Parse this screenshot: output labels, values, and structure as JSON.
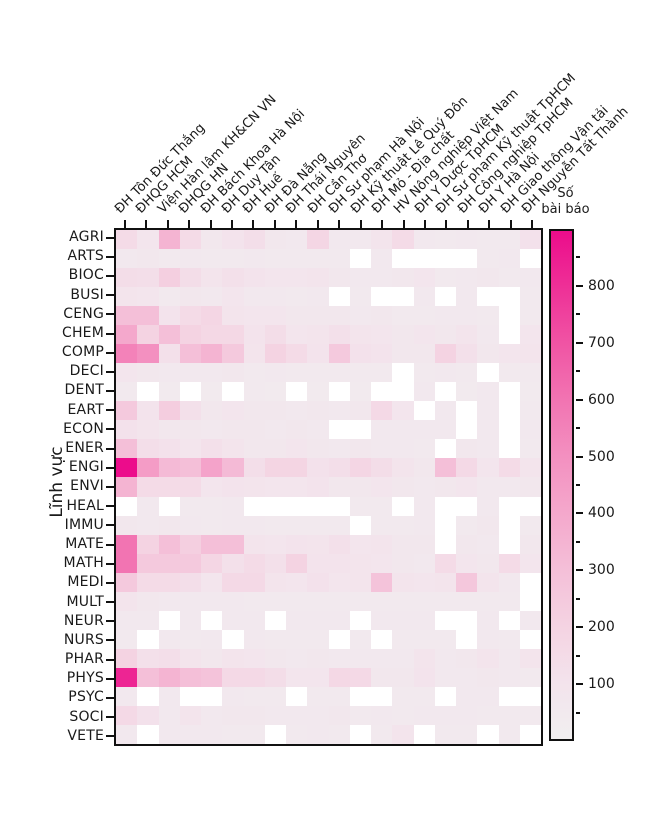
{
  "page": {
    "background": "#ffffff"
  },
  "y_axis": {
    "title": "Lĩnh vực"
  },
  "colorbar": {
    "title_line1": "Số",
    "title_line2": "bài báo",
    "major_ticks": [
      100,
      200,
      300,
      400,
      500,
      600,
      700,
      800
    ],
    "minor_ticks": [
      50,
      150,
      250,
      350,
      450,
      550,
      650,
      750,
      850
    ],
    "min": 0,
    "max": 900,
    "gradient_stops": [
      "#f1eff0",
      "#f3e3ec",
      "#f4d3e2",
      "#f4bfd8",
      "#f4a8cc",
      "#f390c0",
      "#f274b2",
      "#f054a4",
      "#ee3097",
      "#ec0c8b"
    ]
  },
  "chart_data": {
    "type": "heatmap",
    "title": "",
    "xlabel": "",
    "ylabel": "Lĩnh vực",
    "legend_title": "Số bài báo",
    "legend_position": "right",
    "grid": false,
    "x_categories": [
      "ĐH Tôn Đức Thắng",
      "ĐHQG HCM",
      "Viện Hàn lâm KH&CN VN",
      "ĐHQG HN",
      "ĐH Bách Khoa Hà Nội",
      "ĐH Duy Tân",
      "ĐH Huế",
      "ĐH Đà Nẵng",
      "ĐH Thái Nguyên",
      "ĐH Cần Thơ",
      "ĐH Sư phạm Hà Nội",
      "ĐH Kỹ thuật Lê Quý Đôn",
      "ĐH Mỏ - Địa chất",
      "HV Nông nghiệp Việt Nam",
      "ĐH Y Dược TpHCM",
      "ĐH Sư phạm Kỹ thuật TpHCM",
      "ĐH Công nghiệp TpHCM",
      "ĐH Y Hà Nội",
      "ĐH Giao thông Vận tải",
      "ĐH Nguyễn Tất Thành"
    ],
    "y_categories": [
      "AGRI",
      "ARTS",
      "BIOC",
      "BUSI",
      "CENG",
      "CHEM",
      "COMP",
      "DECI",
      "DENT",
      "EART",
      "ECON",
      "ENER",
      "ENGI",
      "ENVI",
      "HEAL",
      "IMMU",
      "MATE",
      "MATH",
      "MEDI",
      "MULT",
      "NEUR",
      "NURS",
      "PHAR",
      "PHYS",
      "PSYC",
      "SOCI",
      "VETE"
    ],
    "values": [
      [
        150,
        80,
        350,
        150,
        70,
        100,
        130,
        70,
        60,
        180,
        60,
        60,
        90,
        150,
        60,
        50,
        60,
        50,
        50,
        110
      ],
      [
        60,
        70,
        50,
        60,
        50,
        50,
        60,
        50,
        50,
        50,
        50,
        null,
        60,
        null,
        null,
        null,
        null,
        50,
        60,
        null
      ],
      [
        140,
        130,
        220,
        140,
        90,
        120,
        100,
        80,
        80,
        90,
        70,
        60,
        60,
        70,
        80,
        50,
        60,
        70,
        50,
        60
      ],
      [
        90,
        80,
        50,
        70,
        60,
        80,
        60,
        60,
        50,
        60,
        null,
        50,
        null,
        null,
        60,
        null,
        60,
        null,
        null,
        50
      ],
      [
        300,
        300,
        100,
        150,
        180,
        90,
        80,
        80,
        70,
        70,
        70,
        60,
        70,
        50,
        50,
        60,
        60,
        50,
        null,
        50
      ],
      [
        400,
        200,
        300,
        200,
        170,
        170,
        100,
        140,
        80,
        90,
        120,
        90,
        80,
        70,
        80,
        70,
        90,
        60,
        null,
        80
      ],
      [
        550,
        500,
        120,
        300,
        350,
        250,
        90,
        200,
        150,
        100,
        250,
        110,
        100,
        70,
        70,
        200,
        120,
        70,
        80,
        90
      ],
      [
        80,
        70,
        60,
        60,
        60,
        70,
        50,
        60,
        50,
        50,
        50,
        50,
        50,
        null,
        50,
        60,
        50,
        null,
        50,
        50
      ],
      [
        50,
        null,
        40,
        null,
        40,
        null,
        50,
        40,
        null,
        40,
        null,
        40,
        null,
        null,
        60,
        null,
        40,
        60,
        null,
        40
      ],
      [
        250,
        100,
        230,
        120,
        70,
        80,
        70,
        70,
        60,
        70,
        60,
        70,
        160,
        80,
        null,
        60,
        null,
        60,
        null,
        50
      ],
      [
        110,
        90,
        70,
        70,
        60,
        70,
        70,
        60,
        70,
        60,
        null,
        null,
        60,
        60,
        60,
        60,
        null,
        60,
        null,
        60
      ],
      [
        300,
        130,
        110,
        80,
        120,
        90,
        70,
        70,
        80,
        70,
        60,
        70,
        60,
        60,
        50,
        null,
        70,
        60,
        null,
        50
      ],
      [
        900,
        450,
        320,
        300,
        420,
        320,
        130,
        190,
        190,
        110,
        130,
        180,
        140,
        90,
        70,
        300,
        160,
        80,
        150,
        90
      ],
      [
        350,
        150,
        150,
        150,
        80,
        100,
        90,
        80,
        80,
        100,
        70,
        70,
        80,
        70,
        60,
        70,
        80,
        60,
        60,
        70
      ],
      [
        null,
        60,
        null,
        50,
        50,
        60,
        null,
        null,
        null,
        null,
        null,
        50,
        50,
        null,
        60,
        null,
        null,
        60,
        null,
        null
      ],
      [
        70,
        60,
        70,
        60,
        50,
        60,
        60,
        50,
        50,
        50,
        50,
        null,
        50,
        50,
        60,
        null,
        50,
        70,
        null,
        50
      ],
      [
        600,
        200,
        300,
        220,
        300,
        300,
        90,
        80,
        100,
        90,
        120,
        80,
        90,
        70,
        70,
        null,
        70,
        60,
        null,
        70
      ],
      [
        600,
        250,
        250,
        250,
        180,
        120,
        150,
        120,
        200,
        100,
        100,
        90,
        80,
        70,
        60,
        150,
        80,
        70,
        150,
        80
      ],
      [
        250,
        150,
        150,
        130,
        80,
        160,
        160,
        90,
        80,
        110,
        80,
        90,
        280,
        90,
        80,
        90,
        260,
        90,
        60,
        null
      ],
      [
        90,
        70,
        60,
        60,
        60,
        60,
        50,
        50,
        50,
        50,
        50,
        50,
        50,
        50,
        50,
        50,
        50,
        50,
        50,
        null
      ],
      [
        60,
        60,
        null,
        60,
        null,
        60,
        60,
        null,
        60,
        60,
        60,
        null,
        60,
        60,
        60,
        null,
        null,
        60,
        null,
        60
      ],
      [
        50,
        null,
        60,
        50,
        60,
        null,
        60,
        50,
        50,
        50,
        null,
        50,
        null,
        50,
        50,
        50,
        null,
        60,
        50,
        null
      ],
      [
        200,
        120,
        130,
        90,
        70,
        90,
        80,
        70,
        60,
        70,
        60,
        60,
        60,
        60,
        90,
        60,
        70,
        90,
        60,
        90
      ],
      [
        830,
        300,
        350,
        300,
        280,
        160,
        160,
        140,
        80,
        80,
        170,
        160,
        70,
        70,
        100,
        60,
        60,
        70,
        60,
        50
      ],
      [
        60,
        null,
        60,
        null,
        null,
        60,
        50,
        50,
        null,
        50,
        50,
        null,
        null,
        50,
        50,
        null,
        60,
        60,
        null,
        null
      ],
      [
        160,
        110,
        60,
        90,
        60,
        70,
        70,
        60,
        60,
        60,
        70,
        50,
        60,
        50,
        60,
        60,
        60,
        50,
        50,
        50
      ],
      [
        60,
        null,
        60,
        60,
        60,
        50,
        50,
        null,
        50,
        60,
        50,
        null,
        50,
        90,
        null,
        50,
        50,
        null,
        50,
        null
      ]
    ],
    "color_scale": {
      "min": 0,
      "max": 900,
      "low": "#f1eff0",
      "high": "#ec0c8b"
    },
    "missing_color": "#ffffff"
  }
}
